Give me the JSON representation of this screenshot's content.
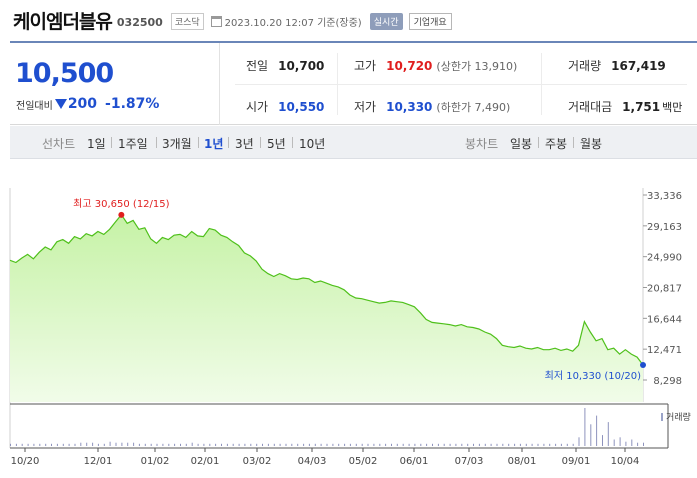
{
  "header": {
    "name": "케이엠더블유",
    "code": "032500",
    "market": "코스닥",
    "time": "2023.10.20 12:07 기준(장중)",
    "realtime": "실시간",
    "overview": "기업개요"
  },
  "quote": {
    "price": "10,500",
    "diff_label": "전일대비",
    "diff_value": "200",
    "diff_pct": "-1.87%",
    "prev_label": "전일",
    "prev_value": "10,700",
    "high_label": "고가",
    "high_value": "10,720",
    "upper_limit": "(상한가 13,910)",
    "volume_label": "거래량",
    "volume_value": "167,419",
    "open_label": "시가",
    "open_value": "10,550",
    "low_label": "저가",
    "low_value": "10,330",
    "lower_limit": "(하한가 7,490)",
    "amount_label": "거래대금",
    "amount_value": "1,751",
    "amount_unit": "백만"
  },
  "period_bar": {
    "line_label": "선차트",
    "periods": [
      "1일",
      "1주일",
      "3개월",
      "1년",
      "3년",
      "5년",
      "10년"
    ],
    "selected": "1년",
    "candle_label": "봉차트",
    "candles": [
      "일봉",
      "주봉",
      "월봉"
    ]
  },
  "colors": {
    "price_down": "#1f4fcf",
    "price_up": "#e01e1e",
    "line": "#4fc01b",
    "fill": "#c6f2a6"
  },
  "chart_data": {
    "type": "area",
    "ylim": [
      8298,
      33336
    ],
    "y_ticks": [
      "33,336",
      "29,163",
      "24,990",
      "20,817",
      "16,644",
      "12,471",
      "8,298"
    ],
    "x_ticks": [
      "10/20",
      "12/01",
      "01/02",
      "02/01",
      "03/02",
      "04/03",
      "05/02",
      "06/01",
      "07/03",
      "08/01",
      "09/01",
      "10/04"
    ],
    "high_annotation": "최고 30,650 (12/15)",
    "low_annotation": "최저 10,330 (10/20)",
    "volume_label": "거래량",
    "series": [
      {
        "values": [
          24500,
          24200,
          24800,
          25300,
          24700,
          25600,
          26300,
          25900,
          27000,
          27300,
          26800,
          27700,
          27400,
          28100,
          27800,
          28400,
          28000,
          28700,
          29700,
          30650,
          29500,
          29900,
          28700,
          28900,
          27400,
          26800,
          27600,
          27300,
          27900,
          28000,
          27600,
          28400,
          27800,
          27700,
          28800,
          28600,
          27900,
          27600,
          27000,
          26500,
          25500,
          25100,
          24400,
          23300,
          22700,
          22300,
          22700,
          22400,
          22000,
          21900,
          22100,
          22000,
          21500,
          21700,
          21400,
          21100,
          20900,
          20500,
          19800,
          19400,
          19300,
          19100,
          18900,
          18700,
          18800,
          19000,
          18900,
          18800,
          18500,
          18200,
          17400,
          16500,
          16100,
          16000,
          15900,
          15800,
          15600,
          15800,
          15500,
          15400,
          15200,
          14800,
          14500,
          13900,
          13000,
          12800,
          12700,
          12900,
          12600,
          12500,
          12700,
          12400,
          12400,
          12600,
          12300,
          12500,
          12200,
          13000,
          16200,
          14800,
          13600,
          13900,
          12400,
          12600,
          11800,
          12400,
          11800,
          11400,
          10330
        ]
      }
    ],
    "volume": [
      2,
      2,
      2,
      2,
      2,
      2,
      2,
      2,
      2,
      2,
      2,
      2,
      3,
      3,
      3,
      2,
      2,
      4,
      3,
      3,
      3,
      3,
      2,
      2,
      2,
      2,
      2,
      2,
      2,
      2,
      2,
      3,
      2,
      2,
      2,
      2,
      2,
      2,
      2,
      2,
      2,
      2,
      2,
      2,
      2,
      2,
      2,
      2,
      2,
      2,
      2,
      2,
      2,
      2,
      2,
      2,
      2,
      2,
      2,
      2,
      2,
      2,
      2,
      2,
      2,
      2,
      2,
      2,
      2,
      2,
      2,
      2,
      2,
      2,
      2,
      2,
      2,
      2,
      2,
      2,
      2,
      2,
      2,
      2,
      2,
      2,
      2,
      2,
      2,
      2,
      2,
      2,
      2,
      2,
      2,
      2,
      2,
      8,
      35,
      20,
      28,
      10,
      22,
      6,
      8,
      4,
      6,
      3,
      3
    ]
  }
}
